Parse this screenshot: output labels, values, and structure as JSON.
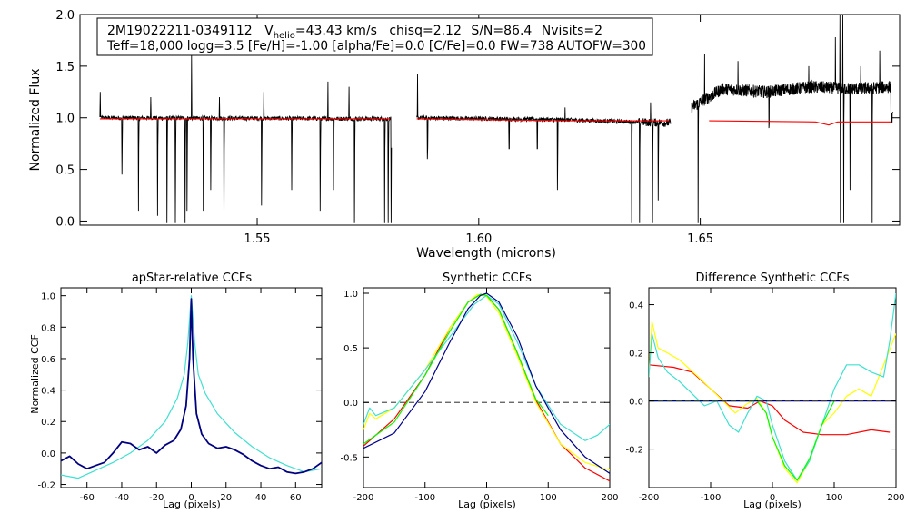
{
  "info_box": {
    "star_id": "2M19022211-0349112",
    "vhelio_prefix": "V",
    "vhelio_sub": "helio",
    "vhelio_value": "=43.43 km/s",
    "chisq": "chisq=2.12",
    "snr": "S/N=86.4",
    "nvisits": "Nvisits=2",
    "params": "Teff=18,000 logg=3.5 [Fe/H]=-1.00 [alpha/Fe]=0.0 [C/Fe]=0.0 FW=738 AUTOFW=300"
  },
  "chart_data": [
    {
      "id": "spectrum",
      "type": "line",
      "title": "",
      "xlabel": "Wavelength (microns)",
      "ylabel": "Normalized Flux",
      "xlim": [
        1.51,
        1.695
      ],
      "ylim": [
        -0.04,
        2.0
      ],
      "xticks": [
        1.55,
        1.6,
        1.65
      ],
      "xtick_labels": [
        "1.55",
        "1.60",
        "1.65"
      ],
      "yticks": [
        0.0,
        0.5,
        1.0,
        1.5,
        2.0
      ],
      "ytick_labels": [
        "0.0",
        "0.5",
        "1.0",
        "1.5",
        "2.0"
      ],
      "chips": [
        [
          1.5145,
          1.5803
        ],
        [
          1.586,
          1.6433
        ],
        [
          1.648,
          1.6935
        ]
      ],
      "series": [
        {
          "name": "observed",
          "color": "#000000",
          "continuum": [
            [
              1.5145,
              1.0
            ],
            [
              1.58,
              0.99
            ],
            [
              1.586,
              1.0
            ],
            [
              1.62,
              0.98
            ],
            [
              1.643,
              0.95
            ],
            [
              1.648,
              1.1
            ],
            [
              1.655,
              1.28
            ],
            [
              1.665,
              1.25
            ],
            [
              1.675,
              1.3
            ],
            [
              1.685,
              1.28
            ],
            [
              1.693,
              1.3
            ]
          ],
          "absorption_lines": [
            [
              1.5195,
              0.45
            ],
            [
              1.5232,
              0.1
            ],
            [
              1.5275,
              0.05
            ],
            [
              1.5296,
              -0.02
            ],
            [
              1.5315,
              -0.02
            ],
            [
              1.5337,
              -0.02
            ],
            [
              1.5342,
              0.1
            ],
            [
              1.5378,
              0.1
            ],
            [
              1.5395,
              0.3
            ],
            [
              1.5425,
              -0.02
            ],
            [
              1.551,
              0.15
            ],
            [
              1.5578,
              0.3
            ],
            [
              1.5642,
              0.1
            ],
            [
              1.5672,
              0.3
            ],
            [
              1.572,
              -0.02
            ],
            [
              1.5788,
              -0.02
            ],
            [
              1.5796,
              -0.02
            ],
            [
              1.5802,
              -0.02
            ],
            [
              1.5884,
              0.6
            ],
            [
              1.6068,
              0.7
            ],
            [
              1.6132,
              0.7
            ],
            [
              1.6178,
              0.3
            ],
            [
              1.6345,
              -0.02
            ],
            [
              1.6363,
              -0.02
            ],
            [
              1.6392,
              -0.02
            ],
            [
              1.6405,
              0.2
            ],
            [
              1.6495,
              -0.02
            ],
            [
              1.6655,
              0.9
            ],
            [
              1.6816,
              -0.02
            ],
            [
              1.6824,
              -0.02
            ],
            [
              1.6838,
              0.3
            ],
            [
              1.6888,
              -0.02
            ]
          ],
          "emission_spikes": [
            [
              1.5146,
              1.25
            ],
            [
              1.526,
              1.2
            ],
            [
              1.5352,
              1.6
            ],
            [
              1.5415,
              1.2
            ],
            [
              1.5515,
              1.25
            ],
            [
              1.566,
              1.35
            ],
            [
              1.5707,
              1.3
            ],
            [
              1.5862,
              1.42
            ],
            [
              1.6195,
              1.1
            ],
            [
              1.6388,
              1.15
            ],
            [
              1.651,
              1.62
            ],
            [
              1.6585,
              1.55
            ],
            [
              1.6745,
              1.5
            ],
            [
              1.6805,
              1.78
            ],
            [
              1.6815,
              2.0
            ],
            [
              1.6822,
              2.0
            ],
            [
              1.6862,
              1.5
            ],
            [
              1.6905,
              1.65
            ]
          ]
        },
        {
          "name": "synthetic",
          "color": "#ff0000",
          "points": [
            [
              1.5145,
              0.99
            ],
            [
              1.58,
              0.99
            ],
            [
              1.586,
              0.99
            ],
            [
              1.62,
              0.97
            ],
            [
              1.643,
              0.97
            ],
            [
              1.652,
              0.97
            ],
            [
              1.676,
              0.96
            ],
            [
              1.679,
              0.93
            ],
            [
              1.681,
              0.96
            ],
            [
              1.693,
              0.96
            ]
          ]
        }
      ]
    },
    {
      "id": "apstar",
      "type": "line",
      "title": "apStar-relative CCFs",
      "xlabel": "Lag (pixels)",
      "ylabel": "Normalized CCF",
      "xlim": [
        -75,
        75
      ],
      "ylim": [
        -0.22,
        1.05
      ],
      "xticks": [
        -60,
        -40,
        -20,
        0,
        20,
        40,
        60
      ],
      "xtick_labels": [
        "-60",
        "-40",
        "-20",
        "0",
        "20",
        "40",
        "60"
      ],
      "yticks": [
        -0.2,
        0.0,
        0.2,
        0.4,
        0.6,
        0.8,
        1.0
      ],
      "ytick_labels": [
        "-0.2",
        "0.0",
        "0.2",
        "0.4",
        "0.6",
        "0.8",
        "1.0"
      ],
      "series": [
        {
          "name": "visit-ccf-turquoise",
          "color": "#40e0d0",
          "x": [
            -75,
            -65,
            -55,
            -45,
            -35,
            -25,
            -15,
            -8,
            -4,
            -2,
            0,
            2,
            4,
            8,
            15,
            25,
            35,
            45,
            55,
            65,
            75
          ],
          "y": [
            -0.14,
            -0.16,
            -0.11,
            -0.06,
            0.0,
            0.08,
            0.2,
            0.35,
            0.5,
            0.7,
            1.0,
            0.7,
            0.5,
            0.38,
            0.25,
            0.13,
            0.04,
            -0.03,
            -0.08,
            -0.12,
            -0.1
          ]
        },
        {
          "name": "visit-ccf-navy",
          "color": "#000080",
          "x": [
            -75,
            -70,
            -65,
            -60,
            -55,
            -50,
            -45,
            -40,
            -35,
            -30,
            -25,
            -20,
            -15,
            -10,
            -6,
            -3,
            -1,
            0,
            1,
            3,
            6,
            10,
            15,
            20,
            25,
            30,
            35,
            40,
            45,
            50,
            55,
            60,
            65,
            70,
            75
          ],
          "y": [
            -0.05,
            -0.02,
            -0.07,
            -0.1,
            -0.08,
            -0.06,
            0.0,
            0.07,
            0.06,
            0.02,
            0.04,
            0.0,
            0.05,
            0.08,
            0.15,
            0.3,
            0.6,
            0.98,
            0.6,
            0.25,
            0.12,
            0.06,
            0.03,
            0.04,
            0.02,
            -0.01,
            -0.05,
            -0.08,
            -0.1,
            -0.09,
            -0.12,
            -0.13,
            -0.12,
            -0.1,
            -0.06
          ]
        }
      ]
    },
    {
      "id": "synthetic",
      "type": "line",
      "title": "Synthetic CCFs",
      "xlabel": "Lag (pixels)",
      "ylabel": "",
      "xlim": [
        -200,
        200
      ],
      "ylim": [
        -0.78,
        1.05
      ],
      "xticks": [
        -200,
        -100,
        0,
        100,
        200
      ],
      "xtick_labels": [
        "-200",
        "-100",
        "0",
        "100",
        "200"
      ],
      "yticks": [
        -0.5,
        0.0,
        0.5,
        1.0
      ],
      "ytick_labels": [
        "-0.5",
        "0.0",
        "0.5",
        "1.0"
      ],
      "reference_line": 0.0,
      "series": [
        {
          "name": "red",
          "color": "#ff0000",
          "x": [
            -200,
            -150,
            -100,
            -60,
            -30,
            -10,
            0,
            20,
            50,
            80,
            120,
            160,
            200
          ],
          "y": [
            -0.4,
            -0.15,
            0.25,
            0.68,
            0.92,
            0.99,
            0.98,
            0.85,
            0.45,
            0.02,
            -0.38,
            -0.6,
            -0.72
          ]
        },
        {
          "name": "yellow",
          "color": "#ffff00",
          "x": [
            -200,
            -190,
            -180,
            -150,
            -100,
            -60,
            -30,
            -15,
            0,
            20,
            50,
            80,
            120,
            160,
            200
          ],
          "y": [
            -0.25,
            -0.1,
            -0.15,
            -0.05,
            0.3,
            0.68,
            0.92,
            0.99,
            0.97,
            0.82,
            0.42,
            0.0,
            -0.38,
            -0.55,
            -0.62
          ]
        },
        {
          "name": "turquoise",
          "color": "#40e0d0",
          "x": [
            -200,
            -190,
            -180,
            -150,
            -100,
            -60,
            -40,
            -20,
            0,
            20,
            50,
            80,
            120,
            160,
            180,
            200
          ],
          "y": [
            -0.2,
            -0.05,
            -0.12,
            -0.05,
            0.3,
            0.6,
            0.75,
            0.9,
            0.98,
            0.9,
            0.55,
            0.15,
            -0.2,
            -0.35,
            -0.3,
            -0.2
          ]
        },
        {
          "name": "green",
          "color": "#00ff00",
          "x": [
            -200,
            -150,
            -100,
            -60,
            -30,
            -10,
            0,
            20,
            50,
            80,
            100
          ],
          "y": [
            -0.38,
            -0.18,
            0.25,
            0.65,
            0.92,
            0.99,
            0.98,
            0.85,
            0.45,
            0.03,
            -0.12
          ]
        },
        {
          "name": "navy",
          "color": "#00008b",
          "x": [
            -200,
            -150,
            -100,
            -60,
            -30,
            -10,
            0,
            20,
            50,
            80,
            120,
            160,
            200
          ],
          "y": [
            -0.42,
            -0.28,
            0.1,
            0.55,
            0.86,
            0.98,
            1.0,
            0.92,
            0.6,
            0.15,
            -0.25,
            -0.5,
            -0.65
          ]
        }
      ]
    },
    {
      "id": "difference",
      "type": "line",
      "title": "Difference Synthetic CCFs",
      "xlabel": "Lag (pixels)",
      "ylabel": "",
      "xlim": [
        -200,
        200
      ],
      "ylim": [
        -0.36,
        0.47
      ],
      "xticks": [
        -200,
        -100,
        0,
        100,
        200
      ],
      "xtick_labels": [
        "-200",
        "-100",
        "0",
        "100",
        "200"
      ],
      "yticks": [
        -0.2,
        0.0,
        0.2,
        0.4
      ],
      "ytick_labels": [
        "-0.2",
        "0.0",
        "0.2",
        "0.4"
      ],
      "series": [
        {
          "name": "red",
          "color": "#ff0000",
          "x": [
            -200,
            -160,
            -130,
            -100,
            -70,
            -40,
            -20,
            0,
            20,
            50,
            80,
            120,
            160,
            190
          ],
          "y": [
            0.15,
            0.14,
            0.12,
            0.05,
            -0.02,
            -0.03,
            0.0,
            -0.02,
            -0.08,
            -0.13,
            -0.14,
            -0.14,
            -0.12,
            -0.13
          ]
        },
        {
          "name": "yellow",
          "color": "#ffff00",
          "x": [
            -200,
            -195,
            -185,
            -170,
            -150,
            -120,
            -100,
            -80,
            -60,
            -40,
            -25,
            -10,
            0,
            20,
            40,
            60,
            80,
            100,
            120,
            140,
            160,
            180,
            200
          ],
          "y": [
            0.1,
            0.33,
            0.22,
            0.2,
            0.17,
            0.1,
            0.05,
            0.0,
            -0.05,
            -0.01,
            0.01,
            -0.05,
            -0.15,
            -0.28,
            -0.34,
            -0.25,
            -0.1,
            -0.05,
            0.02,
            0.05,
            0.02,
            0.15,
            0.28
          ]
        },
        {
          "name": "turquoise",
          "color": "#40e0d0",
          "x": [
            -200,
            -195,
            -185,
            -170,
            -150,
            -130,
            -110,
            -90,
            -70,
            -55,
            -40,
            -25,
            -10,
            0,
            20,
            40,
            60,
            80,
            100,
            120,
            140,
            160,
            180,
            190,
            200
          ],
          "y": [
            0.1,
            0.28,
            0.18,
            0.12,
            0.08,
            0.03,
            -0.02,
            0.0,
            -0.1,
            -0.13,
            -0.05,
            0.02,
            0.0,
            -0.1,
            -0.25,
            -0.33,
            -0.25,
            -0.1,
            0.05,
            0.15,
            0.15,
            0.12,
            0.1,
            0.25,
            0.45
          ]
        },
        {
          "name": "green",
          "color": "#00ff00",
          "x": [
            -200,
            -180,
            -150,
            -100,
            -60,
            -40,
            -25,
            -10,
            0,
            20,
            40,
            60,
            80,
            100
          ],
          "y": [
            0.0,
            0.0,
            0.0,
            0.0,
            0.0,
            0.0,
            0.0,
            -0.05,
            -0.15,
            -0.27,
            -0.33,
            -0.24,
            -0.1,
            0.0
          ]
        },
        {
          "name": "zero-line",
          "color": "#00008b",
          "x": [
            -200,
            200
          ],
          "y": [
            0.0,
            0.0
          ]
        },
        {
          "name": "zero-line-dash",
          "color": "#000000",
          "dashed": true,
          "x": [
            -200,
            200
          ],
          "y": [
            0.0,
            0.0
          ]
        }
      ]
    }
  ]
}
